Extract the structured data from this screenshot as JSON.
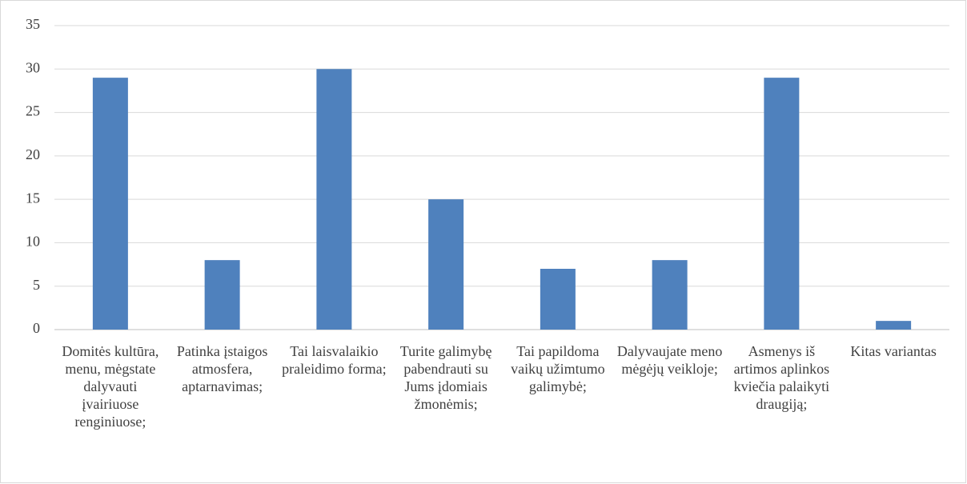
{
  "chart_data": {
    "type": "bar",
    "categories": [
      "Domitės kultūra, menu, mėgstate dalyvauti įvairiuose renginiuose;",
      "Patinka įstaigos atmosfera, aptarnavimas;",
      "Tai laisvalaikio praleidimo forma;",
      "Turite galimybę pabendrauti su Jums įdomiais žmonėmis;",
      "Tai papildoma vaikų užimtumo galimybė;",
      "Dalyvaujate meno mėgėjų veikloje;",
      "Asmenys iš artimos aplinkos kviečia palaikyti draugiją;",
      "Kitas variantas"
    ],
    "values": [
      29,
      8,
      30,
      15,
      7,
      8,
      29,
      1
    ],
    "color": "#4f81bd",
    "ylim": [
      0,
      35
    ],
    "yticks": [
      0,
      5,
      10,
      15,
      20,
      25,
      30,
      35
    ],
    "grid": true
  }
}
